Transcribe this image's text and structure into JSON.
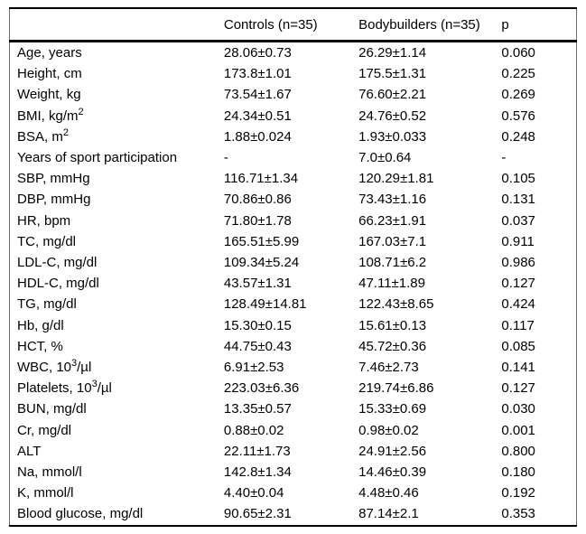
{
  "table": {
    "columns": [
      "",
      "Controls (n=35)",
      "Bodybuilders (n=35)",
      "p"
    ],
    "rows": [
      {
        "label": "Age, years",
        "controls": "28.06±0.73",
        "bodybuilders": "26.29±1.14",
        "p": "0.060"
      },
      {
        "label": "Height, cm",
        "controls": "173.8±1.01",
        "bodybuilders": "175.5±1.31",
        "p": "0.225"
      },
      {
        "label": "Weight, kg",
        "controls": "73.54±1.67",
        "bodybuilders": "76.60±2.21",
        "p": "0.269"
      },
      {
        "label": "BMI, kg/m^{2}",
        "controls": "24.34±0.51",
        "bodybuilders": "24.76±0.52",
        "p": "0.576"
      },
      {
        "label": "BSA, m^{2}",
        "controls": "1.88±0.024",
        "bodybuilders": "1.93±0.033",
        "p": "0.248"
      },
      {
        "label": "Years of sport participation",
        "controls": "-",
        "bodybuilders": "7.0±0.64",
        "p": "-"
      },
      {
        "label": "SBP, mmHg",
        "controls": "116.71±1.34",
        "bodybuilders": "120.29±1.81",
        "p": "0.105"
      },
      {
        "label": "DBP, mmHg",
        "controls": "70.86±0.86",
        "bodybuilders": "73.43±1.16",
        "p": "0.131"
      },
      {
        "label": "HR, bpm",
        "controls": "71.80±1.78",
        "bodybuilders": "66.23±1.91",
        "p": "0.037"
      },
      {
        "label": "TC, mg/dl",
        "controls": "165.51±5.99",
        "bodybuilders": "167.03±7.1",
        "p": "0.911"
      },
      {
        "label": "LDL-C, mg/dl",
        "controls": "109.34±5.24",
        "bodybuilders": "108.71±6.2",
        "p": "0.986"
      },
      {
        "label": "HDL-C, mg/dl",
        "controls": "43.57±1.31",
        "bodybuilders": "47.11±1.89",
        "p": "0.127"
      },
      {
        "label": "TG, mg/dl",
        "controls": "128.49±14.81",
        "bodybuilders": "122.43±8.65",
        "p": "0.424"
      },
      {
        "label": "Hb, g/dl",
        "controls": "15.30±0.15",
        "bodybuilders": "15.61±0.13",
        "p": "0.117"
      },
      {
        "label": "HCT, %",
        "controls": "44.75±0.43",
        "bodybuilders": "45.72±0.36",
        "p": "0.085"
      },
      {
        "label": "WBC, 10^{3}/µl",
        "controls": "6.91±2.53",
        "bodybuilders": "7.46±2.73",
        "p": "0.141"
      },
      {
        "label": "Platelets, 10^{3}/µl",
        "controls": "223.03±6.36",
        "bodybuilders": "219.74±6.86",
        "p": "0.127"
      },
      {
        "label": "BUN, mg/dl",
        "controls": "13.35±0.57",
        "bodybuilders": "15.33±0.69",
        "p": "0.030"
      },
      {
        "label": "Cr, mg/dl",
        "controls": "0.88±0.02",
        "bodybuilders": "0.98±0.02",
        "p": "0.001"
      },
      {
        "label": "ALT",
        "controls": "22.11±1.73",
        "bodybuilders": "24.91±2.56",
        "p": "0.800"
      },
      {
        "label": "Na, mmol/l",
        "controls": "142.8±1.34",
        "bodybuilders": "14.46±0.39",
        "p": "0.180"
      },
      {
        "label": "K, mmol/l",
        "controls": "4.40±0.04",
        "bodybuilders": "4.48±0.46",
        "p": "0.192"
      },
      {
        "label": "Blood glucose, mg/dl",
        "controls": "90.65±2.31",
        "bodybuilders": "87.14±2.1",
        "p": "0.353"
      }
    ]
  }
}
